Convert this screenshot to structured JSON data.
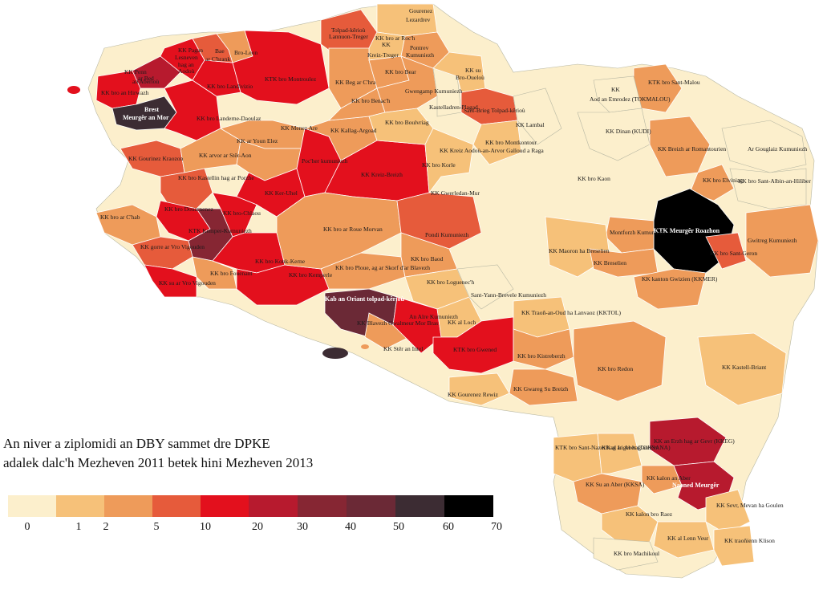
{
  "map_labels": [
    {
      "text": "Gourenez"
    },
    {
      "text": "Lezardrev"
    },
    {
      "text": "Tolpad-kêrioù"
    },
    {
      "text": "Lannuon-Treger"
    },
    {
      "text": "KK bro ar Roc'h"
    },
    {
      "text": "KK"
    },
    {
      "text": "Kreiz-Treger"
    },
    {
      "text": "Pontrev"
    },
    {
      "text": "Kumuniezh"
    },
    {
      "text": "KK Pagan"
    },
    {
      "text": "Lesneven"
    },
    {
      "text": "hag an"
    },
    {
      "text": "Aodoù"
    },
    {
      "text": "Bae"
    },
    {
      "text": "ar C'hrank"
    },
    {
      "text": "Bro-Leon"
    },
    {
      "text": "KK Penn"
    },
    {
      "text": "ar Bed"
    },
    {
      "text": "an Aberioù"
    },
    {
      "text": "KK bro Landivizio"
    },
    {
      "text": "KTK bro Montroulez"
    },
    {
      "text": "KK bro an Hirwazh"
    },
    {
      "text": "Brest"
    },
    {
      "text": "Meurgêr an Mor"
    },
    {
      "text": "KK bro Landerne-Daoulaz"
    },
    {
      "text": "KK Beg ar C'hra"
    },
    {
      "text": "KK bro Bear"
    },
    {
      "text": "KK bro Benac'h"
    },
    {
      "text": "Gwengamp Kumuniezh"
    },
    {
      "text": "Kastelladren-Plagad"
    },
    {
      "text": "KK su"
    },
    {
      "text": "Bro-Oueloù"
    },
    {
      "text": "Sant-Brieg Tolpad-kêrioù"
    },
    {
      "text": "KK Lambal"
    },
    {
      "text": "KK"
    },
    {
      "text": "Aod an Emrodez (TOKMALOU)"
    },
    {
      "text": "KTK bro Sant-Malou"
    },
    {
      "text": "KK Menez Are"
    },
    {
      "text": "KK Kallag-Argoad"
    },
    {
      "text": "KK bro Boulvriag"
    },
    {
      "text": "KK bro Montkontour"
    },
    {
      "text": "KK Kreiz Aodoù-an-Arvor Galloud a Raga"
    },
    {
      "text": "KK Dinan (KUDI)"
    },
    {
      "text": "KK ar Youn Elez"
    },
    {
      "text": "KK arvor ar Stêr-Aon"
    },
    {
      "text": "KK Gourinez Kraozon"
    },
    {
      "text": "Poc'her kumuniezh"
    },
    {
      "text": "KK Kreiz-Breizh"
    },
    {
      "text": "KK bro Korle"
    },
    {
      "text": "KK Breizh ar Romantourien"
    },
    {
      "text": "Ar Gouglaiz Kumuniezh"
    },
    {
      "text": "KK bro Kastellin hag ar Porzhe"
    },
    {
      "text": "KK Ker-Uhel"
    },
    {
      "text": "KK Gwerledan-Mur"
    },
    {
      "text": "KK bro Kaon"
    },
    {
      "text": "KK bro Elviniag"
    },
    {
      "text": "KK bro Sant-Albin-an-Hiliber"
    },
    {
      "text": "KK bro Douarnenez"
    },
    {
      "text": "KK bro ar C'hab"
    },
    {
      "text": "KK bro-Chlaou"
    },
    {
      "text": "KTK Kemper-Kumuniezh"
    },
    {
      "text": "KK bro ar Roue Morvan"
    },
    {
      "text": "Pondi Kumuniezh"
    },
    {
      "text": "KTK Meurgêr Roazhon"
    },
    {
      "text": "KK Maoron ha Breselien"
    },
    {
      "text": "Montforzh Kumuniezh"
    },
    {
      "text": "Gwitreg Kumuniezh"
    },
    {
      "text": "KK bro Sant-Geron"
    },
    {
      "text": "KK gorre ar Vro Vigouden"
    },
    {
      "text": "KK bro Fouenant"
    },
    {
      "text": "KK bro Konk-Kerne"
    },
    {
      "text": "KK bro Kemperle"
    },
    {
      "text": "KK bro Ploue, ag ar Skorf d'ar Blavezh"
    },
    {
      "text": "KK bro Baod"
    },
    {
      "text": "KK bro Loguenec'h"
    },
    {
      "text": "KK Breselien"
    },
    {
      "text": "KK kanton Gwizien (KKMER)"
    },
    {
      "text": "KK su ar Vro Vigouden"
    },
    {
      "text": "Kab an Oriant tolpad-kêrioù"
    },
    {
      "text": "Sant-Yann-Brevele Kumuniezh"
    },
    {
      "text": "KK Blavezh Gwalmeur Mor Bras"
    },
    {
      "text": "An Alre Kumuniezh"
    },
    {
      "text": "KK al Loch"
    },
    {
      "text": "KK Traoñ-an-Oud ha Lanvaoz (KKTOL)"
    },
    {
      "text": "KK Stêr an Intel"
    },
    {
      "text": "KTK bro Gwened"
    },
    {
      "text": "KK bro Kistreberzh"
    },
    {
      "text": "KK bro Redon"
    },
    {
      "text": "KK Kastell-Briant"
    },
    {
      "text": "KK Gourenez Rewiz"
    },
    {
      "text": "KK Gwareg Su Breizh"
    },
    {
      "text": "KTK bro Sant-Nazer hag an Aber (TOKSANA)"
    },
    {
      "text": "KK al Liger hag an Erv"
    },
    {
      "text": "KK an Erzh hag ar Gevr (KKEG)"
    },
    {
      "text": "KK kalon an Aber"
    },
    {
      "text": "KK Su an Aber (KKSA)"
    },
    {
      "text": "Naoned Meurgêr"
    },
    {
      "text": "KK kalon bro Raez"
    },
    {
      "text": "KK Sevr, Mevan ha Goulen"
    },
    {
      "text": "KK al Lenn Veur"
    },
    {
      "text": "KK traoñienn Klison"
    },
    {
      "text": "KK bro Machikoul"
    }
  ],
  "caption": {
    "line1": "An niver a ziplomidi an DBY sammet dre DPKE",
    "line2": "adalek dalc'h Mezheven 2011 betek hini Mezheven 2013"
  },
  "legend": {
    "bins": [
      {
        "min": 0,
        "max": 1,
        "color": "#fcefcc"
      },
      {
        "min": 1,
        "max": 2,
        "color": "#f6c179"
      },
      {
        "min": 2,
        "max": 5,
        "color": "#ee9b5a"
      },
      {
        "min": 5,
        "max": 10,
        "color": "#e65b3b"
      },
      {
        "min": 10,
        "max": 20,
        "color": "#e3101d"
      },
      {
        "min": 20,
        "max": 30,
        "color": "#b71a2e"
      },
      {
        "min": 30,
        "max": 40,
        "color": "#862633"
      },
      {
        "min": 40,
        "max": 50,
        "color": "#6b2936"
      },
      {
        "min": 50,
        "max": 60,
        "color": "#3c2c33"
      },
      {
        "min": 60,
        "max": 70,
        "color": "#000000"
      }
    ],
    "tick_labels": [
      "0",
      "1",
      "2",
      "5",
      "10",
      "20",
      "30",
      "40",
      "50",
      "60",
      "70"
    ]
  },
  "colors": {
    "sea": "#ffffff",
    "boundary": "#ffffff",
    "commune_line": "#b7b7a3"
  }
}
